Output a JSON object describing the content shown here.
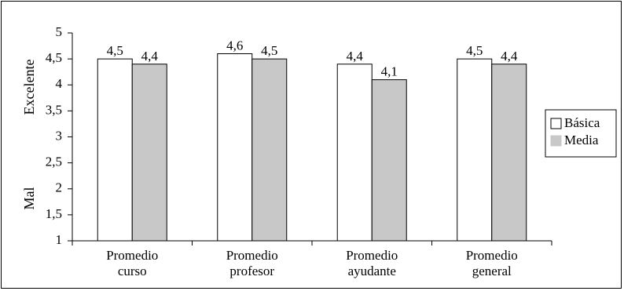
{
  "chart_data": {
    "type": "bar",
    "categories": [
      [
        "Promedio",
        "curso"
      ],
      [
        "Promedio",
        "profesor"
      ],
      [
        "Promedio",
        "ayudante"
      ],
      [
        "Promedio",
        "general"
      ]
    ],
    "series": [
      {
        "name": "Básica",
        "color": "#ffffff",
        "values": [
          4.5,
          4.6,
          4.4,
          4.5
        ],
        "labels": [
          "4,5",
          "4,6",
          "4,4",
          "4,5"
        ]
      },
      {
        "name": "Media",
        "color": "#c8c8c8",
        "values": [
          4.4,
          4.5,
          4.1,
          4.4
        ],
        "labels": [
          "4,4",
          "4,5",
          "4,1",
          "4,4"
        ]
      }
    ],
    "ylim": [
      1,
      5
    ],
    "yticks": [
      "1",
      "1,5",
      "2",
      "2,5",
      "3",
      "3,5",
      "4",
      "4,5",
      "5"
    ],
    "ylabel_top": "Excelente",
    "ylabel_bottom": "Mal",
    "legend_position": "right",
    "grid": false
  }
}
